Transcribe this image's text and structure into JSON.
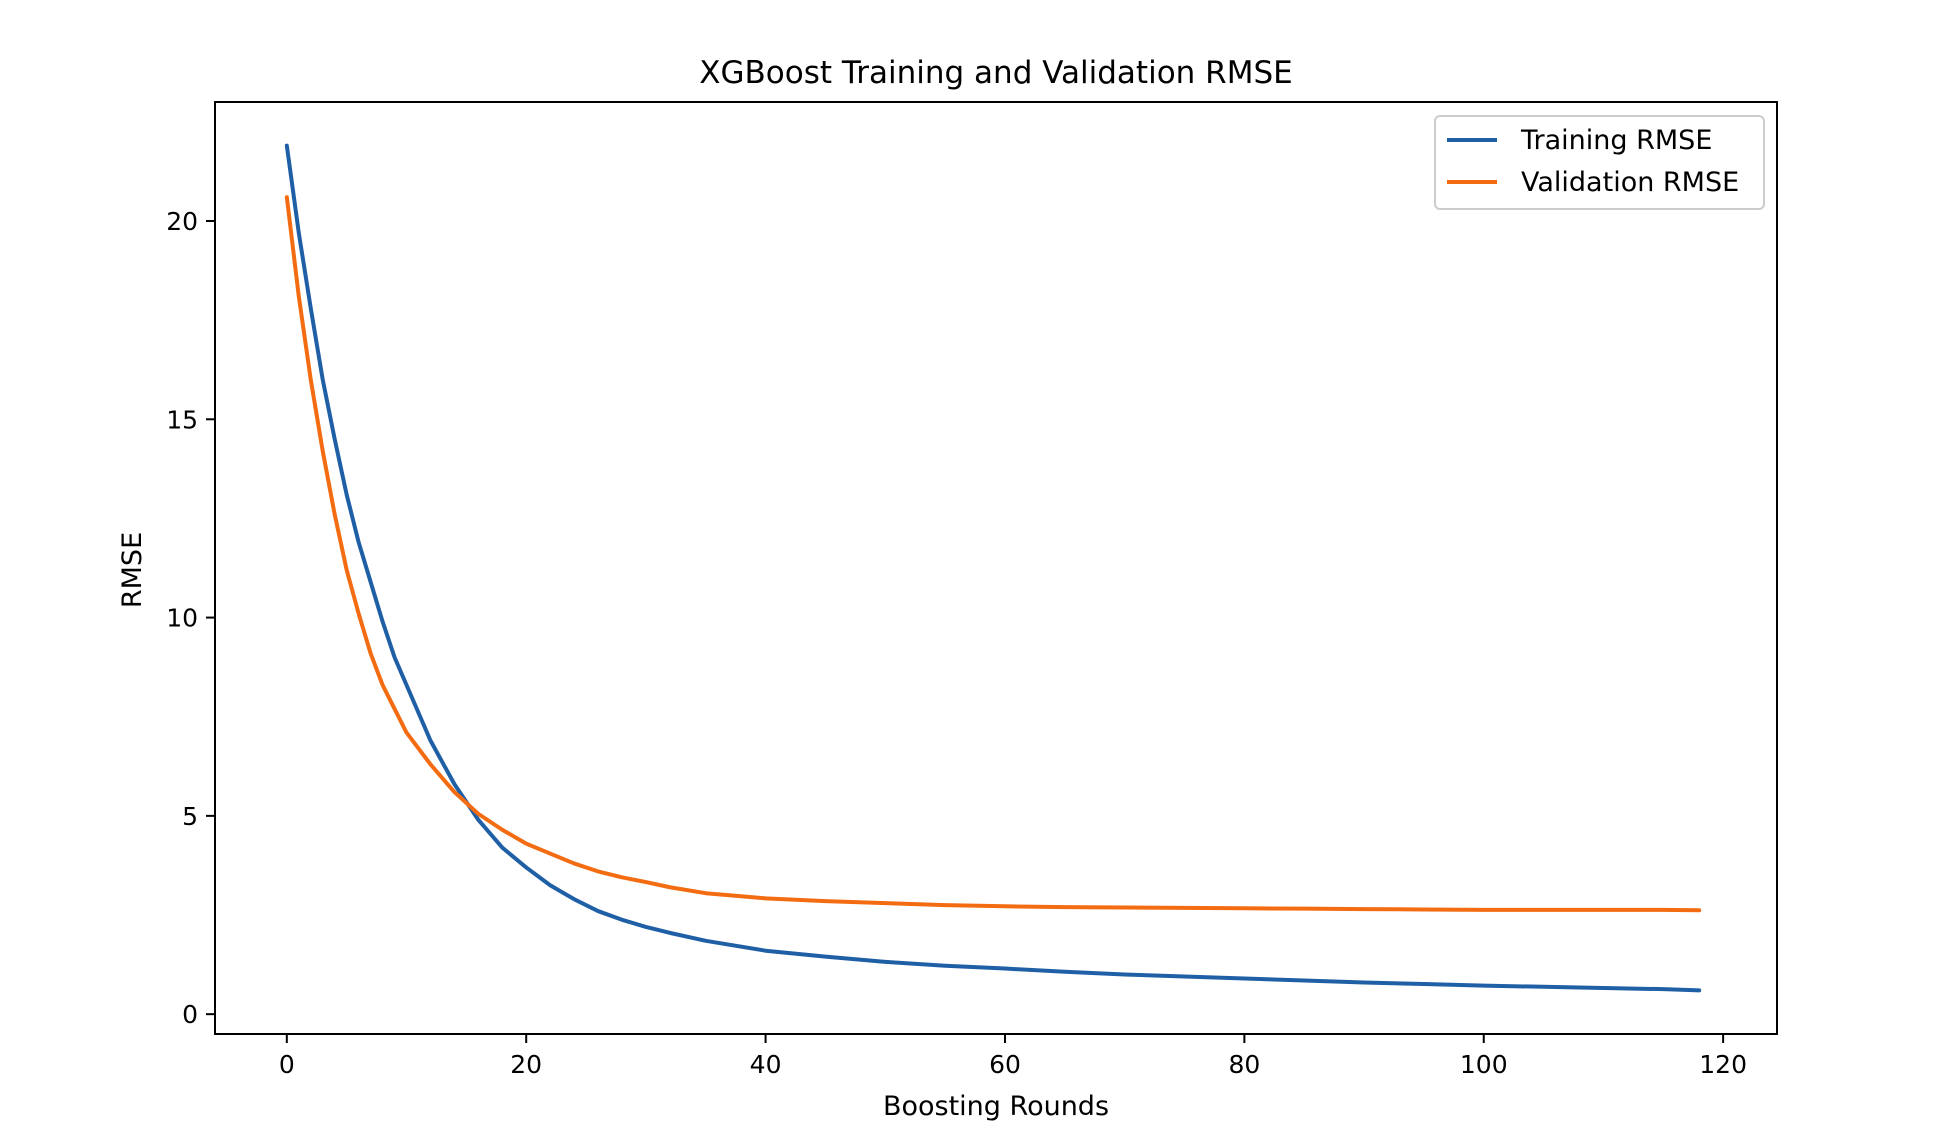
{
  "chart_data": {
    "type": "line",
    "title": "XGBoost Training and Validation RMSE",
    "xlabel": "Boosting Rounds",
    "ylabel": "RMSE",
    "xlim": [
      -6,
      124.5
    ],
    "ylim": [
      -0.5,
      23
    ],
    "xticks": [
      0,
      20,
      40,
      60,
      80,
      100,
      120
    ],
    "yticks": [
      0,
      5,
      10,
      15,
      20
    ],
    "grid": false,
    "legend_position": "top-right",
    "series": [
      {
        "name": "Training RMSE",
        "color": "#1f5fa6",
        "x": [
          0,
          1,
          2,
          3,
          4,
          5,
          6,
          7,
          8,
          9,
          10,
          12,
          14,
          16,
          18,
          20,
          22,
          24,
          26,
          28,
          30,
          32,
          35,
          40,
          45,
          50,
          55,
          60,
          65,
          70,
          75,
          80,
          85,
          90,
          95,
          100,
          105,
          110,
          115,
          118
        ],
        "y": [
          21.9,
          19.7,
          17.8,
          16.0,
          14.5,
          13.1,
          11.9,
          10.9,
          9.9,
          9.0,
          8.3,
          6.9,
          5.8,
          4.9,
          4.2,
          3.7,
          3.25,
          2.9,
          2.6,
          2.38,
          2.2,
          2.05,
          1.85,
          1.6,
          1.45,
          1.32,
          1.22,
          1.15,
          1.07,
          1.0,
          0.95,
          0.9,
          0.85,
          0.8,
          0.76,
          0.72,
          0.69,
          0.66,
          0.63,
          0.6
        ]
      },
      {
        "name": "Validation RMSE",
        "color": "#f36c12",
        "x": [
          0,
          1,
          2,
          3,
          4,
          5,
          6,
          7,
          8,
          9,
          10,
          12,
          14,
          16,
          18,
          20,
          22,
          24,
          26,
          28,
          30,
          32,
          35,
          40,
          45,
          50,
          55,
          60,
          65,
          70,
          75,
          80,
          85,
          90,
          95,
          100,
          105,
          110,
          115,
          118
        ],
        "y": [
          20.6,
          18.1,
          16.0,
          14.2,
          12.6,
          11.2,
          10.1,
          9.1,
          8.3,
          7.7,
          7.1,
          6.3,
          5.6,
          5.05,
          4.65,
          4.3,
          4.05,
          3.8,
          3.6,
          3.45,
          3.33,
          3.2,
          3.05,
          2.92,
          2.85,
          2.8,
          2.75,
          2.72,
          2.7,
          2.69,
          2.68,
          2.67,
          2.66,
          2.65,
          2.64,
          2.63,
          2.63,
          2.63,
          2.63,
          2.62
        ]
      }
    ]
  }
}
